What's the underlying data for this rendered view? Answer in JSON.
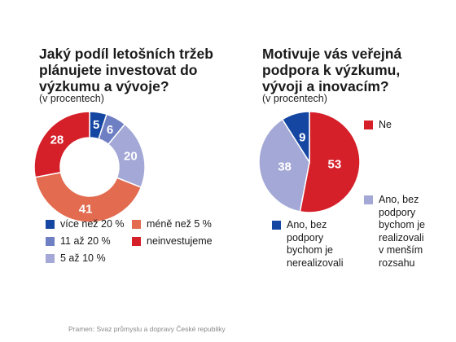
{
  "colors": {
    "dark_blue": "#1546a2",
    "mid_blue": "#6f7fc3",
    "light_blue": "#a3a8d6",
    "orange": "#e26b50",
    "red": "#d5202a"
  },
  "chart_data": [
    {
      "type": "pie",
      "title": "Jaký podíl letošních tržeb plánujete investovat do výzkumu a vývoje?",
      "subtitle": "(v procentech)",
      "slices": [
        {
          "label": "více než 20 %",
          "value": 5,
          "color": "#1546a2"
        },
        {
          "label": "11 až 20 %",
          "value": 6,
          "color": "#6f7fc3"
        },
        {
          "label": "5 až 10 %",
          "value": 20,
          "color": "#a3a8d6"
        },
        {
          "label": "méně než 5 %",
          "value": 41,
          "color": "#e26b50"
        },
        {
          "label": "neinvestujeme",
          "value": 28,
          "color": "#d5202a"
        }
      ],
      "legend_order": [
        0,
        1,
        2,
        3,
        4
      ],
      "legend_placement": "bottom"
    },
    {
      "type": "pie",
      "title": "Motivuje vás veřejná podpora k výzkumu, vývoji a inovacím?",
      "subtitle": "(v procentech)",
      "slices": [
        {
          "label": "Ne",
          "value": 53,
          "color": "#d5202a"
        },
        {
          "label": "Ano, bez podpory bychom je realizovali v menším rozsahu",
          "value": 38,
          "color": "#a3a8d6"
        },
        {
          "label": "Ano, bez podpory bychom je nerealizovali",
          "value": 9,
          "color": "#1546a2"
        }
      ],
      "legend_placement": "right"
    }
  ],
  "legend1": {
    "item1": "více než 20 %",
    "item2": "11 až 20 %",
    "item3": "5 až 10 %",
    "item4": "méně než 5 %",
    "item5": "neinvestujeme"
  },
  "legend2": {
    "ne": "Ne",
    "mensi": "Ano, bez\npodpory\nbychom je\nrealizovali\nv menším\nrozsahu",
    "nerealizovali": "Ano, bez\npodpory\nbychom je\nnerealizovali"
  },
  "source": "Pramen: Svaz průmyslu a dopravy České republiky"
}
